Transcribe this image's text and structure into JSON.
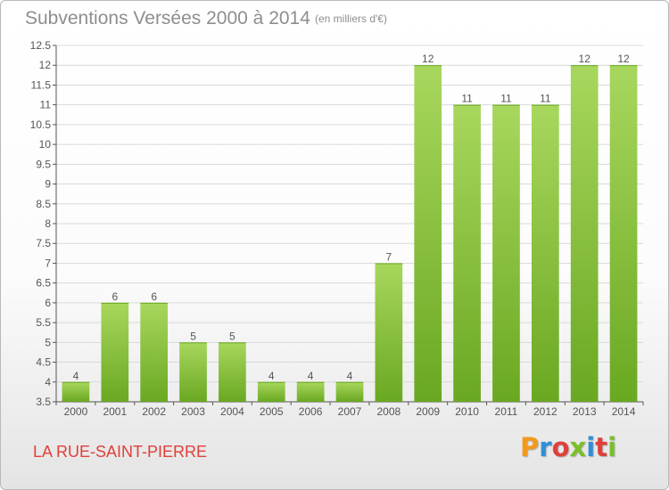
{
  "header": {
    "title": "Subventions Versées 2000 à 2014",
    "subtitle": "(en milliers d'€)"
  },
  "footer": {
    "commune": "LA RUE-SAINT-PIERRE",
    "logo": "Proxiti",
    "logo_colors": [
      "#f29a1e",
      "#2f8fd8",
      "#e0403a",
      "#7bbf2a",
      "#2f8fd8",
      "#e0403a",
      "#7bbf2a"
    ]
  },
  "colors": {
    "bar_light": "#a8d75e",
    "bar_dark": "#6aa821",
    "grid": "#d9d9d9",
    "axis": "#555555"
  },
  "chart_data": {
    "type": "bar",
    "categories": [
      "2000",
      "2001",
      "2002",
      "2003",
      "2004",
      "2005",
      "2006",
      "2007",
      "2008",
      "2009",
      "2010",
      "2011",
      "2012",
      "2013",
      "2014"
    ],
    "values": [
      4,
      6,
      6,
      5,
      5,
      4,
      4,
      4,
      7,
      12,
      11,
      11,
      11,
      12,
      12
    ],
    "value_labels": [
      "4",
      "6",
      "6",
      "5",
      "5",
      "4",
      "4",
      "4",
      "7",
      "12",
      "11",
      "11",
      "11",
      "12",
      "12"
    ],
    "ylim": [
      3.5,
      12.5
    ],
    "yticks": [
      "3.5",
      "4",
      "4.5",
      "5",
      "5.5",
      "6",
      "6.5",
      "7",
      "7.5",
      "8",
      "8.5",
      "9",
      "9.5",
      "10",
      "10.5",
      "11",
      "11.5",
      "12",
      "12.5"
    ],
    "grid": true,
    "xlabel": "",
    "ylabel": ""
  }
}
